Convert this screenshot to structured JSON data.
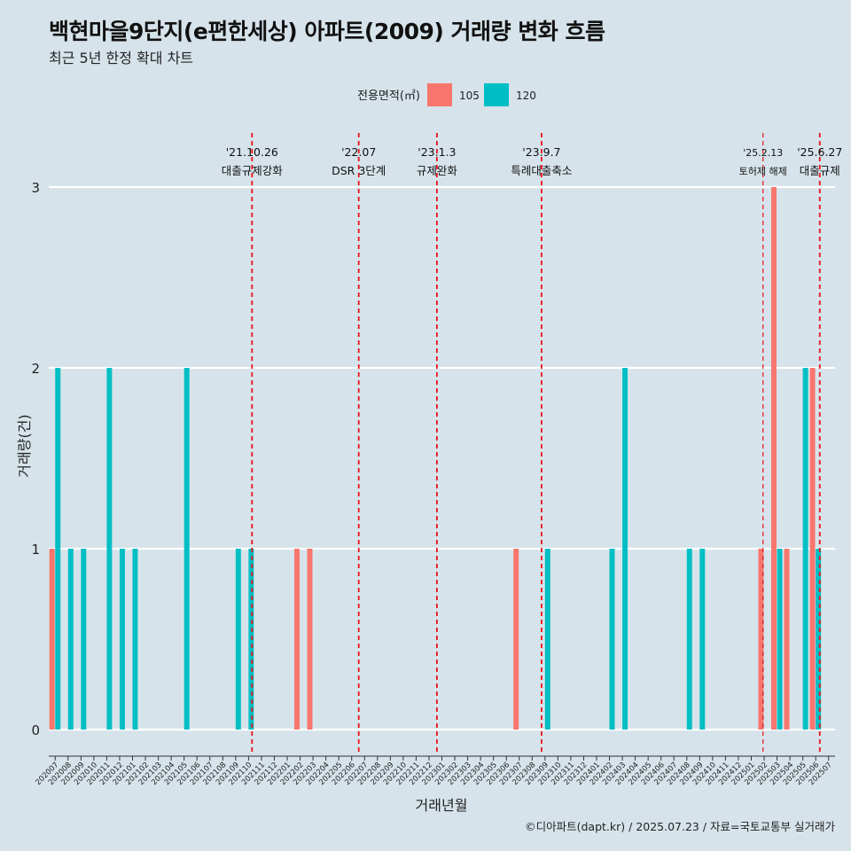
{
  "title": "백현마을9단지(e편한세상) 아파트(2009) 거래량 변화 흐름",
  "subtitle": "최근 5년 한정 확대 차트",
  "caption": "©디아파트(dapt.kr) / 2025.07.23 / 자료=국토교통부 실거래가",
  "chart_data": {
    "type": "bar",
    "xlabel": "거래년월",
    "ylabel": "거래량(건)",
    "ylim": [
      0,
      3
    ],
    "yticks": [
      0,
      1,
      2,
      3
    ],
    "grid": "horizontal",
    "legend": {
      "title": "전용면적(㎡)",
      "position": "top",
      "entries": [
        {
          "name": "105",
          "color": "#f8766d"
        },
        {
          "name": "120",
          "color": "#00bfc4"
        }
      ]
    },
    "categories": [
      "202007",
      "202008",
      "202009",
      "202010",
      "202011",
      "202012",
      "202101",
      "202102",
      "202103",
      "202104",
      "202105",
      "202106",
      "202107",
      "202108",
      "202109",
      "202110",
      "202111",
      "202112",
      "202201",
      "202202",
      "202203",
      "202204",
      "202205",
      "202206",
      "202207",
      "202208",
      "202209",
      "202210",
      "202211",
      "202212",
      "202301",
      "202302",
      "202303",
      "202304",
      "202305",
      "202306",
      "202307",
      "202308",
      "202309",
      "202310",
      "202311",
      "202312",
      "202401",
      "202402",
      "202403",
      "202404",
      "202405",
      "202406",
      "202407",
      "202408",
      "202409",
      "202410",
      "202411",
      "202412",
      "202501",
      "202502",
      "202503",
      "202504",
      "202505",
      "202506",
      "202507"
    ],
    "series": [
      {
        "name": "105",
        "color": "#f8766d",
        "values": [
          1,
          0,
          0,
          0,
          0,
          0,
          0,
          0,
          0,
          0,
          0,
          0,
          0,
          0,
          0,
          0,
          0,
          0,
          0,
          1,
          1,
          0,
          0,
          0,
          0,
          0,
          0,
          0,
          0,
          0,
          0,
          0,
          0,
          0,
          0,
          0,
          1,
          0,
          0,
          0,
          0,
          0,
          0,
          0,
          0,
          0,
          0,
          0,
          0,
          0,
          0,
          0,
          0,
          0,
          0,
          1,
          3,
          1,
          0,
          2,
          0
        ]
      },
      {
        "name": "120",
        "color": "#00bfc4",
        "values": [
          2,
          1,
          1,
          0,
          2,
          1,
          1,
          0,
          0,
          0,
          2,
          0,
          0,
          0,
          1,
          1,
          0,
          0,
          0,
          0,
          0,
          0,
          0,
          0,
          0,
          0,
          0,
          0,
          0,
          0,
          0,
          0,
          0,
          0,
          0,
          0,
          0,
          0,
          1,
          0,
          0,
          0,
          0,
          1,
          2,
          0,
          0,
          0,
          0,
          1,
          1,
          0,
          0,
          0,
          0,
          0,
          1,
          0,
          2,
          1,
          0
        ]
      }
    ],
    "events": [
      {
        "date": "'21.10.26",
        "label": "대출규제강화",
        "month": "202110",
        "offset": 0.8
      },
      {
        "date": "'22.07",
        "label": "DSR 3단계",
        "month": "202207",
        "offset": 0.0
      },
      {
        "date": "'23.1.3",
        "label": "규제완화",
        "month": "202301",
        "offset": 0.07
      },
      {
        "date": "'23.9.7",
        "label": "특례대출축소",
        "month": "202309",
        "offset": 0.2
      },
      {
        "date": "'25.2.13",
        "label": "토허제 해제",
        "month": "202502",
        "offset": 0.4
      },
      {
        "date": "'25.6.27",
        "label": "대출규제",
        "month": "202506",
        "offset": 0.85
      }
    ]
  }
}
